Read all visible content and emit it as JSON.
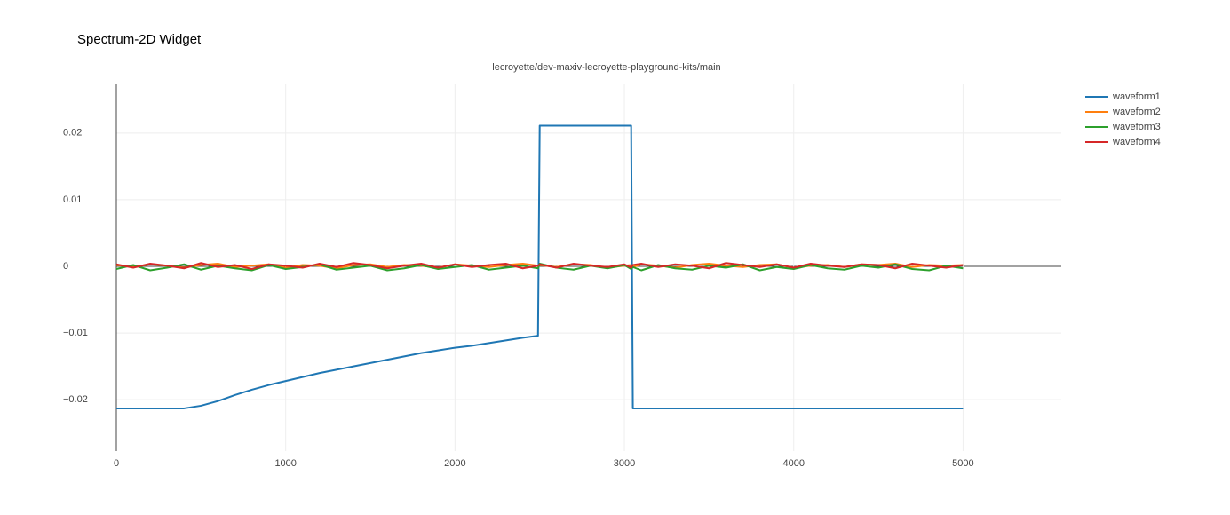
{
  "header": {
    "title": "Spectrum-2D Widget"
  },
  "chart_data": {
    "type": "line",
    "title": "lecroyette/dev-maxiv-lecroyette-playground-kits/main",
    "x": [
      0,
      100,
      200,
      300,
      400,
      500,
      600,
      700,
      800,
      900,
      1000,
      1100,
      1200,
      1300,
      1400,
      1500,
      1600,
      1700,
      1800,
      1900,
      2000,
      2100,
      2200,
      2300,
      2400,
      2490,
      2500,
      2600,
      2700,
      2800,
      2900,
      3000,
      3040,
      3050,
      3100,
      3200,
      3300,
      3400,
      3500,
      3600,
      3700,
      3800,
      3900,
      4000,
      4100,
      4200,
      4300,
      4400,
      4500,
      4600,
      4700,
      4800,
      4900,
      5000
    ],
    "series": [
      {
        "name": "waveform1",
        "color": "#1f77b4",
        "values": [
          -0.0213,
          -0.0213,
          -0.0213,
          -0.0213,
          -0.0213,
          -0.0209,
          -0.0202,
          -0.0193,
          -0.0185,
          -0.0178,
          -0.0172,
          -0.0166,
          -0.016,
          -0.0155,
          -0.015,
          -0.0145,
          -0.014,
          -0.0135,
          -0.013,
          -0.0126,
          -0.0122,
          -0.0119,
          -0.0115,
          -0.0111,
          -0.0107,
          -0.0104,
          0.0211,
          0.0211,
          0.0211,
          0.0211,
          0.0211,
          0.0211,
          0.0211,
          -0.0213,
          -0.0213,
          -0.0213,
          -0.0213,
          -0.0213,
          -0.0213,
          -0.0213,
          -0.0213,
          -0.0213,
          -0.0213,
          -0.0213,
          -0.0213,
          -0.0213,
          -0.0213,
          -0.0213,
          -0.0213,
          -0.0213,
          -0.0213,
          -0.0213,
          -0.0213,
          -0.0213
        ]
      },
      {
        "name": "waveform2",
        "color": "#ff7f0e",
        "values": [
          0.0002,
          -0.0001,
          0.0003,
          0.0001,
          -0.0002,
          0.0002,
          0.0004,
          -0.0001,
          0.0001,
          0.0003,
          -0.0002,
          0.0002,
          0.0001,
          -0.0003,
          0.0002,
          0.0003,
          -0.0001,
          0.0002,
          0.0001,
          -0.0002,
          0.0003,
          0.0001,
          -0.0001,
          0.0002,
          0.0004,
          0.0001,
          0.0002,
          -0.0001,
          0.0003,
          0.0002,
          -0.0002,
          0.0001,
          0.0002,
          -0.0001,
          0.0003,
          0.0001,
          -0.0002,
          0.0002,
          0.0004,
          0.0001,
          -0.0001,
          0.0002,
          0.0003,
          -0.0002,
          0.0001,
          0.0002,
          -0.0001,
          0.0003,
          0.0002,
          0.0004,
          -0.0001,
          0.0002,
          0.0001,
          0.0002
        ]
      },
      {
        "name": "waveform3",
        "color": "#2ca02c",
        "values": [
          -0.0004,
          0.0002,
          -0.0006,
          -0.0002,
          0.0003,
          -0.0005,
          0.0001,
          -0.0003,
          -0.0006,
          0.0002,
          -0.0004,
          -0.0001,
          0.0003,
          -0.0005,
          -0.0002,
          0.0001,
          -0.0006,
          -0.0003,
          0.0002,
          -0.0004,
          -0.0001,
          0.0002,
          -0.0005,
          -0.0002,
          0.0001,
          -0.0003,
          0.0004,
          -0.0002,
          -0.0005,
          0.0001,
          -0.0003,
          0.0002,
          -0.0004,
          -0.0001,
          -0.0006,
          0.0002,
          -0.0003,
          -0.0005,
          0.0001,
          -0.0002,
          0.0003,
          -0.0006,
          -0.0001,
          -0.0004,
          0.0002,
          -0.0003,
          -0.0005,
          0.0001,
          -0.0002,
          0.0003,
          -0.0004,
          -0.0006,
          0.0001,
          -0.0003
        ]
      },
      {
        "name": "waveform4",
        "color": "#d62728",
        "values": [
          0.0003,
          -0.0002,
          0.0004,
          0.0001,
          -0.0003,
          0.0005,
          -0.0001,
          0.0002,
          -0.0004,
          0.0003,
          0.0001,
          -0.0002,
          0.0004,
          -0.0001,
          0.0005,
          0.0002,
          -0.0003,
          0.0001,
          0.0004,
          -0.0002,
          0.0003,
          -0.0001,
          0.0002,
          0.0004,
          -0.0003,
          0.0001,
          0.0003,
          -0.0002,
          0.0004,
          0.0001,
          -0.0001,
          0.0003,
          -0.0002,
          0.0002,
          0.0004,
          -0.0001,
          0.0003,
          0.0001,
          -0.0003,
          0.0005,
          0.0002,
          -0.0001,
          0.0003,
          -0.0002,
          0.0004,
          0.0001,
          -0.0001,
          0.0003,
          0.0002,
          -0.0003,
          0.0004,
          0.0001,
          -0.0002,
          0.0002
        ]
      }
    ],
    "xlim": [
      0,
      5580
    ],
    "xticks": [
      0,
      1000,
      2000,
      3000,
      4000,
      5000
    ],
    "ylim": [
      -0.0277,
      0.0273
    ],
    "yticks": [
      {
        "value": -0.02,
        "label": "−0.02"
      },
      {
        "value": -0.01,
        "label": "−0.01"
      },
      0,
      0.01,
      0.02
    ],
    "grid": true,
    "legend": "right"
  }
}
